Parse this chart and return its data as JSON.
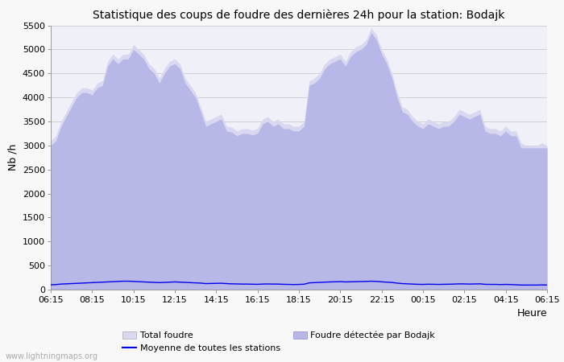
{
  "title": "Statistique des coups de foudre des dernières 24h pour la station: Bodajk",
  "xlabel": "Heure",
  "ylabel": "Nb /h",
  "ylim": [
    0,
    5500
  ],
  "yticks": [
    0,
    500,
    1000,
    1500,
    2000,
    2500,
    3000,
    3500,
    4000,
    4500,
    5000,
    5500
  ],
  "xtick_labels": [
    "06:15",
    "08:15",
    "10:15",
    "12:15",
    "14:15",
    "16:15",
    "18:15",
    "20:15",
    "22:15",
    "00:15",
    "02:15",
    "04:15",
    "06:15"
  ],
  "bg_color": "#f8f8f8",
  "plot_bg_color": "#f0f0f8",
  "grid_color": "#cccccc",
  "fill_total_color": "#d8d8f0",
  "fill_bodajk_color": "#b8b8e8",
  "line_moyenne_color": "#0000ee",
  "watermark": "www.lightningmaps.org",
  "x_values": [
    0,
    1,
    2,
    3,
    4,
    5,
    6,
    7,
    8,
    9,
    10,
    11,
    12,
    13,
    14,
    15,
    16,
    17,
    18,
    19,
    20,
    21,
    22,
    23,
    24,
    25,
    26,
    27,
    28,
    29,
    30,
    31,
    32,
    33,
    34,
    35,
    36,
    37,
    38,
    39,
    40,
    41,
    42,
    43,
    44,
    45,
    46,
    47,
    48,
    49,
    50,
    51,
    52,
    53,
    54,
    55,
    56,
    57,
    58,
    59,
    60,
    61,
    62,
    63,
    64,
    65,
    66,
    67,
    68,
    69,
    70,
    71,
    72,
    73,
    74,
    75,
    76,
    77,
    78,
    79,
    80,
    81,
    82,
    83,
    84,
    85,
    86,
    87,
    88,
    89,
    90,
    91,
    92,
    93,
    94,
    95,
    96
  ],
  "total_foudre": [
    3100,
    3200,
    3500,
    3700,
    3900,
    4100,
    4200,
    4200,
    4150,
    4300,
    4350,
    4750,
    4900,
    4800,
    4900,
    4900,
    5100,
    5000,
    4900,
    4700,
    4600,
    4400,
    4600,
    4750,
    4800,
    4700,
    4400,
    4250,
    4100,
    3800,
    3500,
    3550,
    3600,
    3650,
    3400,
    3380,
    3300,
    3350,
    3350,
    3320,
    3350,
    3550,
    3600,
    3500,
    3550,
    3450,
    3450,
    3400,
    3400,
    3500,
    4350,
    4400,
    4500,
    4700,
    4800,
    4850,
    4900,
    4750,
    4950,
    5050,
    5100,
    5200,
    5450,
    5300,
    5000,
    4800,
    4500,
    4100,
    3800,
    3750,
    3600,
    3500,
    3450,
    3550,
    3500,
    3450,
    3500,
    3500,
    3600,
    3750,
    3700,
    3650,
    3700,
    3750,
    3400,
    3350,
    3350,
    3300,
    3400,
    3300,
    3300,
    3050,
    3000,
    3000,
    3000,
    3050,
    3000
  ],
  "foudre_bodajk": [
    3000,
    3100,
    3400,
    3600,
    3800,
    4000,
    4100,
    4100,
    4050,
    4200,
    4250,
    4650,
    4800,
    4700,
    4800,
    4800,
    5000,
    4900,
    4800,
    4600,
    4500,
    4300,
    4500,
    4650,
    4700,
    4600,
    4300,
    4150,
    4000,
    3700,
    3400,
    3450,
    3500,
    3550,
    3300,
    3280,
    3200,
    3250,
    3250,
    3220,
    3250,
    3450,
    3500,
    3400,
    3450,
    3350,
    3350,
    3300,
    3300,
    3400,
    4250,
    4300,
    4400,
    4600,
    4700,
    4750,
    4800,
    4650,
    4850,
    4950,
    5000,
    5100,
    5350,
    5200,
    4900,
    4700,
    4400,
    4000,
    3700,
    3650,
    3500,
    3400,
    3350,
    3450,
    3400,
    3350,
    3400,
    3400,
    3500,
    3650,
    3600,
    3550,
    3600,
    3650,
    3300,
    3250,
    3250,
    3200,
    3300,
    3200,
    3200,
    2950,
    2950,
    2950,
    2950,
    2950,
    2950
  ],
  "moyenne": [
    100,
    105,
    115,
    120,
    125,
    130,
    135,
    140,
    145,
    150,
    155,
    160,
    165,
    170,
    175,
    175,
    170,
    165,
    160,
    155,
    150,
    145,
    150,
    155,
    160,
    155,
    150,
    145,
    140,
    135,
    125,
    128,
    130,
    132,
    125,
    120,
    118,
    115,
    115,
    112,
    110,
    115,
    118,
    115,
    115,
    110,
    108,
    105,
    108,
    112,
    140,
    145,
    150,
    155,
    160,
    162,
    165,
    160,
    162,
    165,
    168,
    170,
    175,
    170,
    162,
    155,
    148,
    135,
    125,
    120,
    115,
    110,
    108,
    112,
    110,
    108,
    110,
    112,
    115,
    120,
    118,
    115,
    118,
    120,
    110,
    108,
    108,
    105,
    108,
    105,
    100,
    95,
    95,
    95,
    95,
    98,
    95
  ]
}
